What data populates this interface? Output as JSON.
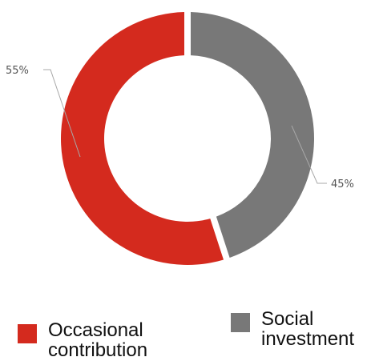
{
  "chart_data": {
    "type": "pie",
    "donut": true,
    "categories": [
      "Occasional contribution",
      "Social investment"
    ],
    "values": [
      55,
      45
    ],
    "unit": "%",
    "data_labels": [
      "55%",
      "45%"
    ],
    "colors": [
      "#D42A1E",
      "#787878"
    ],
    "legend": {
      "placement": "bottom",
      "entries": [
        {
          "label": "Occasional contribution",
          "color": "#D42A1E"
        },
        {
          "label": "Social investment",
          "color": "#787878"
        }
      ]
    }
  }
}
